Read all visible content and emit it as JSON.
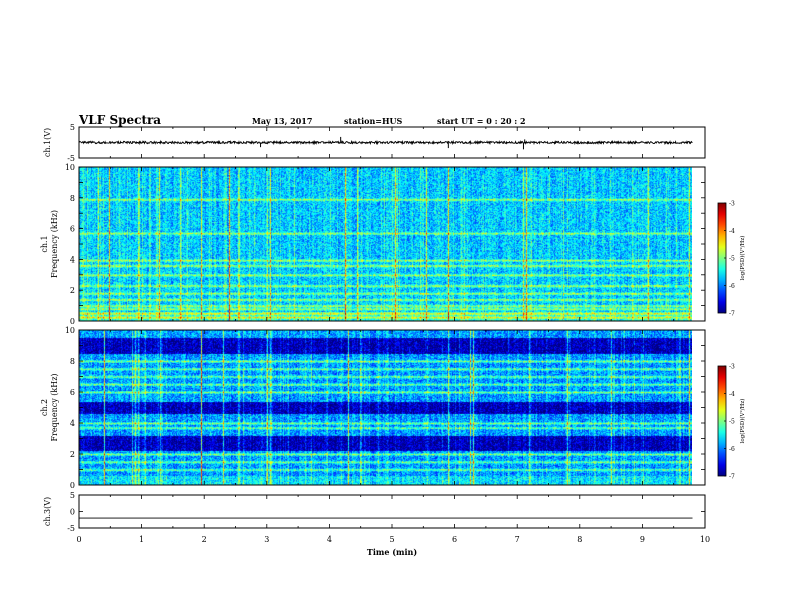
{
  "header": {
    "title": "VLF Spectra",
    "date": "May 13, 2017",
    "station": "station=HUS",
    "start": "start  UT =   0 : 20 : 2"
  },
  "colors": {
    "background": "#ffffff",
    "axes": "#000000",
    "spec_low": "#000050",
    "spec_mid": "#0a46ff",
    "spec_high": "#00ff80"
  },
  "chart_data": [
    {
      "type": "line",
      "panel": "ch1-waveform",
      "ylabel": "ch.1(V)",
      "yticks": [
        "5",
        "-5"
      ],
      "ylim": [
        -5,
        5
      ],
      "xlim": [
        0,
        10
      ],
      "baseline": 0,
      "noise_amplitude": 0.6,
      "spikes": [
        {
          "x": 2.9,
          "y": -1.5
        },
        {
          "x": 4.18,
          "y": 1.8
        },
        {
          "x": 5.9,
          "y": -1.8
        },
        {
          "x": 7.1,
          "y": -2.2
        },
        {
          "x": 7.12,
          "y": 1.0
        }
      ]
    },
    {
      "type": "heatmap",
      "panel": "ch1-spectrogram",
      "ylabel": "ch.1\nFrequency (kHz)",
      "yticks": [
        "0",
        "2",
        "4",
        "6",
        "8",
        "10"
      ],
      "ylim": [
        0,
        10
      ],
      "xlim": [
        0,
        9.8
      ],
      "colorbar": {
        "label": "log(PSD)(V²/Hz)",
        "ticks": [
          "-3",
          "-4",
          "-5",
          "-6",
          "-7"
        ],
        "range": [
          -7,
          -3
        ]
      },
      "bright_vertical_times_min": [
        0.3,
        0.48,
        0.95,
        1.28,
        1.62,
        1.95,
        2.4,
        2.55,
        3.0,
        3.05,
        4.25,
        4.45,
        5.05,
        5.55,
        5.9,
        7.1,
        7.15,
        9.1,
        9.75
      ],
      "bright_horizontal_khz": [
        0.25,
        0.5,
        0.8,
        1.0,
        1.4,
        1.8,
        2.3,
        3.0,
        3.6,
        3.95,
        5.7,
        7.9
      ]
    },
    {
      "type": "heatmap",
      "panel": "ch2-spectrogram",
      "ylabel": "ch.2\nFrequency (kHz)",
      "yticks": [
        "0",
        "2",
        "4",
        "6",
        "8",
        "10"
      ],
      "ylim": [
        0,
        10
      ],
      "xlim": [
        0,
        9.8
      ],
      "colorbar": {
        "label": "log(PSD)(V²/Hz)",
        "ticks": [
          "-3",
          "-4",
          "-5",
          "-6",
          "-7"
        ],
        "range": [
          -7,
          -3
        ]
      },
      "bright_vertical_times_min": [
        0.4,
        0.85,
        0.9,
        0.95,
        1.05,
        1.3,
        1.95,
        2.3,
        2.55,
        3.0,
        3.05,
        4.3,
        4.5,
        5.9,
        6.25,
        6.3,
        7.2,
        7.8,
        8.5,
        9.6,
        9.75
      ],
      "bright_horizontal_khz": [
        1.0,
        1.5,
        2.0,
        3.7,
        4.0,
        6.0,
        6.5,
        7.0,
        7.5,
        8.0
      ],
      "dark_bands_khz": [
        [
          2.2,
          3.2
        ],
        [
          4.6,
          5.4
        ],
        [
          8.5,
          9.5
        ]
      ]
    },
    {
      "type": "line",
      "panel": "ch3-waveform",
      "ylabel": "ch.3(V)",
      "yticks": [
        "5",
        "0",
        "-5"
      ],
      "ylim": [
        -5,
        5
      ],
      "xlim": [
        0,
        10
      ],
      "xticks": [
        "0",
        "1",
        "2",
        "3",
        "4",
        "5",
        "6",
        "7",
        "8",
        "9",
        "10"
      ],
      "xlabel": "Time  (min)",
      "values_x": [
        0,
        9.8
      ],
      "values_y": [
        -2,
        -2
      ]
    }
  ]
}
